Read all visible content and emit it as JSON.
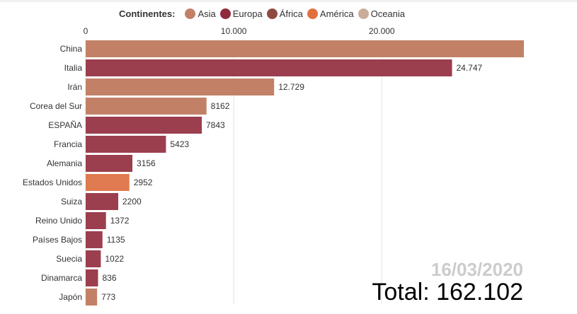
{
  "chart_data": {
    "type": "bar",
    "orientation": "horizontal",
    "legend": {
      "title": "Continentes:",
      "placement": "top",
      "entries": [
        {
          "name": "Asia",
          "color": "#c28167"
        },
        {
          "name": "Europa",
          "color": "#8e2a3c"
        },
        {
          "name": "África",
          "color": "#8e4a42"
        },
        {
          "name": "América",
          "color": "#e0713f"
        },
        {
          "name": "Oceania",
          "color": "#c9ad9b"
        }
      ]
    },
    "xticks": [
      {
        "value": 0,
        "label": "0"
      },
      {
        "value": 10000,
        "label": "10.000"
      },
      {
        "value": 20000,
        "label": "20.000"
      }
    ],
    "xlim": [
      0,
      29600
    ],
    "grid": true,
    "bar_colors": {
      "Asia": "#c28167",
      "Europa": "#9b3e4e",
      "América": "#e07a50"
    },
    "bars": [
      {
        "country": "China",
        "value": 29600,
        "label": "",
        "continent": "Asia"
      },
      {
        "country": "Italia",
        "value": 24747,
        "label": "24.747",
        "continent": "Europa"
      },
      {
        "country": "Irán",
        "value": 12729,
        "label": "12.729",
        "continent": "Asia"
      },
      {
        "country": "Corea del Sur",
        "value": 8162,
        "label": "8162",
        "continent": "Asia"
      },
      {
        "country": "ESPAÑA",
        "value": 7843,
        "label": "7843",
        "continent": "Europa"
      },
      {
        "country": "Francia",
        "value": 5423,
        "label": "5423",
        "continent": "Europa"
      },
      {
        "country": "Alemania",
        "value": 3156,
        "label": "3156",
        "continent": "Europa"
      },
      {
        "country": "Estados Unidos",
        "value": 2952,
        "label": "2952",
        "continent": "América"
      },
      {
        "country": "Suiza",
        "value": 2200,
        "label": "2200",
        "continent": "Europa"
      },
      {
        "country": "Reino Unido",
        "value": 1372,
        "label": "1372",
        "continent": "Europa"
      },
      {
        "country": "Países Bajos",
        "value": 1135,
        "label": "1135",
        "continent": "Europa"
      },
      {
        "country": "Suecia",
        "value": 1022,
        "label": "1022",
        "continent": "Europa"
      },
      {
        "country": "Dinamarca",
        "value": 836,
        "label": "836",
        "continent": "Europa"
      },
      {
        "country": "Japón",
        "value": 773,
        "label": "773",
        "continent": "Asia"
      }
    ],
    "date": "16/03/2020",
    "total": "Total: 162.102"
  }
}
